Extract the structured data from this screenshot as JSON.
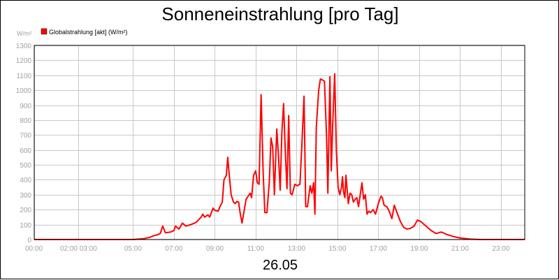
{
  "chart_data": {
    "type": "line",
    "title": "Sonneneinstrahlung [pro Tag]",
    "ylabel": "W/m²",
    "date_label": "26.05",
    "legend": {
      "placement": "top-left",
      "entries": [
        "Globalstrahlung [akt] (W/m²)"
      ]
    },
    "grid": true,
    "ylim": [
      0,
      1300
    ],
    "xlim": [
      "00:00",
      "24:00"
    ],
    "y_ticks": [
      "0",
      "100",
      "200",
      "300",
      "400",
      "500",
      "600",
      "700",
      "800",
      "900",
      "1000",
      "1100",
      "1200",
      "1300"
    ],
    "x_tick_labels": [
      {
        "t": "00:00",
        "label": "00:00"
      },
      {
        "t": "02:10",
        "label": "02:00 03:00"
      },
      {
        "t": "04:50",
        "label": "05:00"
      },
      {
        "t": "06:50",
        "label": "07:00"
      },
      {
        "t": "08:50",
        "label": "09:00"
      },
      {
        "t": "10:50",
        "label": "11:00"
      },
      {
        "t": "12:50",
        "label": "13:00"
      },
      {
        "t": "14:50",
        "label": "15:00"
      },
      {
        "t": "16:50",
        "label": "17:00"
      },
      {
        "t": "18:50",
        "label": "19:00"
      },
      {
        "t": "20:50",
        "label": "21:00"
      },
      {
        "t": "22:50",
        "label": "23:00"
      }
    ],
    "x_gridlines": [
      "00:00",
      "02:10",
      "04:50",
      "06:50",
      "08:50",
      "10:50",
      "12:50",
      "14:50",
      "16:50",
      "18:50",
      "20:50",
      "22:50"
    ],
    "series": [
      {
        "name": "Globalstrahlung [akt] (W/m²)",
        "color": "#ff0000",
        "points": [
          [
            "00:00",
            0
          ],
          [
            "04:50",
            0
          ],
          [
            "05:20",
            5
          ],
          [
            "05:40",
            15
          ],
          [
            "05:50",
            25
          ],
          [
            "06:00",
            30
          ],
          [
            "06:10",
            40
          ],
          [
            "06:17",
            90
          ],
          [
            "06:25",
            45
          ],
          [
            "06:40",
            50
          ],
          [
            "06:50",
            60
          ],
          [
            "06:55",
            90
          ],
          [
            "07:05",
            70
          ],
          [
            "07:15",
            110
          ],
          [
            "07:25",
            90
          ],
          [
            "07:40",
            100
          ],
          [
            "07:55",
            115
          ],
          [
            "08:10",
            150
          ],
          [
            "08:15",
            170
          ],
          [
            "08:20",
            150
          ],
          [
            "08:30",
            165
          ],
          [
            "08:35",
            150
          ],
          [
            "08:45",
            210
          ],
          [
            "08:50",
            195
          ],
          [
            "09:00",
            190
          ],
          [
            "09:05",
            220
          ],
          [
            "09:12",
            250
          ],
          [
            "09:17",
            400
          ],
          [
            "09:24",
            430
          ],
          [
            "09:28",
            550
          ],
          [
            "09:33",
            420
          ],
          [
            "09:38",
            300
          ],
          [
            "09:45",
            250
          ],
          [
            "09:50",
            240
          ],
          [
            "09:55",
            255
          ],
          [
            "10:00",
            250
          ],
          [
            "10:05",
            170
          ],
          [
            "10:10",
            110
          ],
          [
            "10:16",
            190
          ],
          [
            "10:22",
            270
          ],
          [
            "10:28",
            290
          ],
          [
            "10:34",
            310
          ],
          [
            "10:38",
            280
          ],
          [
            "10:44",
            430
          ],
          [
            "10:50",
            460
          ],
          [
            "10:55",
            380
          ],
          [
            "11:00",
            370
          ],
          [
            "11:06",
            970
          ],
          [
            "11:12",
            450
          ],
          [
            "11:17",
            180
          ],
          [
            "11:23",
            180
          ],
          [
            "11:30",
            380
          ],
          [
            "11:35",
            680
          ],
          [
            "11:40",
            620
          ],
          [
            "11:45",
            300
          ],
          [
            "11:52",
            740
          ],
          [
            "11:57",
            560
          ],
          [
            "12:02",
            330
          ],
          [
            "12:07",
            720
          ],
          [
            "12:12",
            910
          ],
          [
            "12:17",
            590
          ],
          [
            "12:22",
            340
          ],
          [
            "12:27",
            830
          ],
          [
            "12:32",
            310
          ],
          [
            "12:37",
            300
          ],
          [
            "12:45",
            370
          ],
          [
            "12:52",
            360
          ],
          [
            "13:00",
            370
          ],
          [
            "13:05",
            600
          ],
          [
            "13:12",
            960
          ],
          [
            "13:17",
            220
          ],
          [
            "13:22",
            220
          ],
          [
            "13:30",
            360
          ],
          [
            "13:35",
            310
          ],
          [
            "13:40",
            380
          ],
          [
            "13:44",
            170
          ],
          [
            "13:48",
            750
          ],
          [
            "13:55",
            1000
          ],
          [
            "14:00",
            1075
          ],
          [
            "14:05",
            1070
          ],
          [
            "14:12",
            1060
          ],
          [
            "14:18",
            700
          ],
          [
            "14:22",
            310
          ],
          [
            "14:28",
            1090
          ],
          [
            "14:32",
            460
          ],
          [
            "14:36",
            760
          ],
          [
            "14:42",
            1110
          ],
          [
            "14:47",
            590
          ],
          [
            "14:52",
            350
          ],
          [
            "14:57",
            300
          ],
          [
            "15:02",
            350
          ],
          [
            "15:05",
            420
          ],
          [
            "15:08",
            320
          ],
          [
            "15:12",
            280
          ],
          [
            "15:15",
            430
          ],
          [
            "15:22",
            240
          ],
          [
            "15:27",
            310
          ],
          [
            "15:32",
            300
          ],
          [
            "15:37",
            250
          ],
          [
            "15:42",
            270
          ],
          [
            "15:47",
            280
          ],
          [
            "15:52",
            220
          ],
          [
            "15:57",
            300
          ],
          [
            "16:02",
            380
          ],
          [
            "16:07",
            270
          ],
          [
            "16:12",
            300
          ],
          [
            "16:17",
            170
          ],
          [
            "16:22",
            190
          ],
          [
            "16:27",
            180
          ],
          [
            "16:35",
            200
          ],
          [
            "16:42",
            170
          ],
          [
            "16:50",
            240
          ],
          [
            "16:58",
            290
          ],
          [
            "17:02",
            280
          ],
          [
            "17:07",
            230
          ],
          [
            "17:15",
            220
          ],
          [
            "17:22",
            190
          ],
          [
            "17:30",
            140
          ],
          [
            "17:37",
            230
          ],
          [
            "17:45",
            180
          ],
          [
            "17:55",
            120
          ],
          [
            "18:05",
            80
          ],
          [
            "18:15",
            70
          ],
          [
            "18:25",
            75
          ],
          [
            "18:35",
            90
          ],
          [
            "18:45",
            130
          ],
          [
            "18:55",
            120
          ],
          [
            "19:10",
            90
          ],
          [
            "19:25",
            60
          ],
          [
            "19:40",
            40
          ],
          [
            "19:55",
            50
          ],
          [
            "20:10",
            35
          ],
          [
            "20:30",
            20
          ],
          [
            "20:50",
            10
          ],
          [
            "21:20",
            3
          ],
          [
            "21:50",
            0
          ],
          [
            "24:00",
            0
          ]
        ]
      }
    ]
  }
}
